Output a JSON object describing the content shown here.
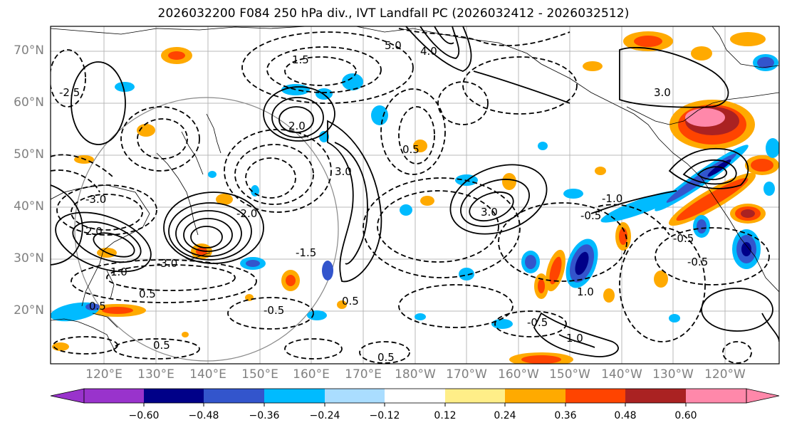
{
  "title": "2026032200 F084 250 hPa div., IVT Landfall PC (2026032412 - 2026032512)",
  "latitude_labels": [
    "70°N",
    "60°N",
    "50°N",
    "40°N",
    "30°N",
    "20°N"
  ],
  "longitude_labels": [
    "120°E",
    "130°E",
    "140°E",
    "150°E",
    "160°E",
    "170°E",
    "180°W",
    "170°W",
    "160°W",
    "150°W",
    "140°W",
    "130°W",
    "120°W"
  ],
  "colorbar": {
    "tick_labels": [
      "−0.60",
      "−0.48",
      "−0.36",
      "−0.24",
      "−0.12",
      "0.12",
      "0.24",
      "0.36",
      "0.48",
      "0.60"
    ],
    "colors": [
      "#9933cc",
      "#000088",
      "#3355cc",
      "#00bbff",
      "#aaddff",
      "#ffffff",
      "#ffee88",
      "#ffaa00",
      "#ff4400",
      "#aa2222",
      "#ff88aa"
    ]
  },
  "contour_labels": [
    "5.0",
    "4.0",
    "3.0",
    "2.0",
    "1.5",
    "1.0",
    "0.5",
    "-0.5",
    "-1.0",
    "-1.5",
    "-2.0",
    "-2.5",
    "-3.0"
  ],
  "accent_colors": {
    "contour": "#000000",
    "grid": "#b0b0b0",
    "coast": "#000000",
    "circle": "#888888"
  }
}
